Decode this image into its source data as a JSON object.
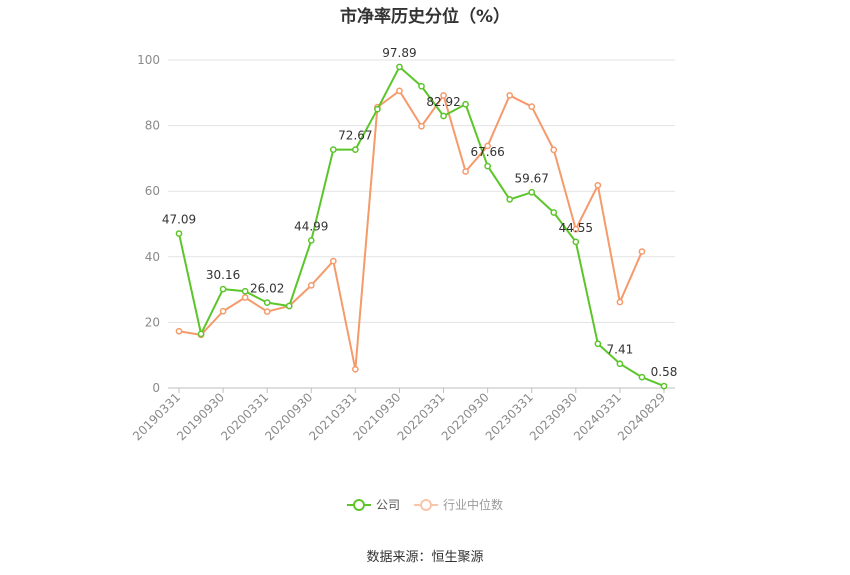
{
  "chart_data": {
    "type": "line",
    "title": "市净率历史分位（%）",
    "x": [
      "20190331",
      "20190630",
      "20190930",
      "20191231",
      "20200331",
      "20200630",
      "20200930",
      "20201231",
      "20210331",
      "20210630",
      "20210930",
      "20211231",
      "20220331",
      "20220630",
      "20220930",
      "20221231",
      "20230331",
      "20230630",
      "20230930",
      "20231231",
      "20240331",
      "20240630",
      "20240829"
    ],
    "x_tick_labels": [
      "20190331",
      "20190930",
      "20200331",
      "20200930",
      "20210331",
      "20210930",
      "20220331",
      "20220930",
      "20230331",
      "20230930",
      "20240331",
      "20240829"
    ],
    "ylim": [
      0,
      100
    ],
    "y_ticks": [
      0,
      20,
      40,
      60,
      80,
      100
    ],
    "grid": true,
    "legend_position": "bottom",
    "series": [
      {
        "name": "公司",
        "color": "#5cc52a",
        "values": [
          47.09,
          16.5,
          30.16,
          29.5,
          26.02,
          25.0,
          44.99,
          72.67,
          72.67,
          85.0,
          97.89,
          92.0,
          82.92,
          86.5,
          67.66,
          57.5,
          59.67,
          53.5,
          44.55,
          13.5,
          7.41,
          3.3,
          0.58
        ],
        "data_labels": {
          "0": "47.09",
          "2": "30.16",
          "4": "26.02",
          "6": "44.99",
          "8": "72.67",
          "10": "97.89",
          "12": "82.92",
          "14": "67.66",
          "16": "59.67",
          "18": "44.55",
          "20": "7.41",
          "22": "0.58"
        }
      },
      {
        "name": "行业中位数",
        "color": "#f59a6b",
        "values": [
          17.3,
          16.2,
          23.4,
          27.6,
          23.3,
          25.0,
          31.3,
          38.7,
          5.7,
          85.6,
          90.6,
          79.8,
          89.2,
          66.0,
          73.8,
          89.2,
          85.8,
          72.6,
          48.4,
          61.8,
          26.2,
          41.6,
          null
        ]
      }
    ]
  },
  "source_text": "数据来源：恒生聚源"
}
